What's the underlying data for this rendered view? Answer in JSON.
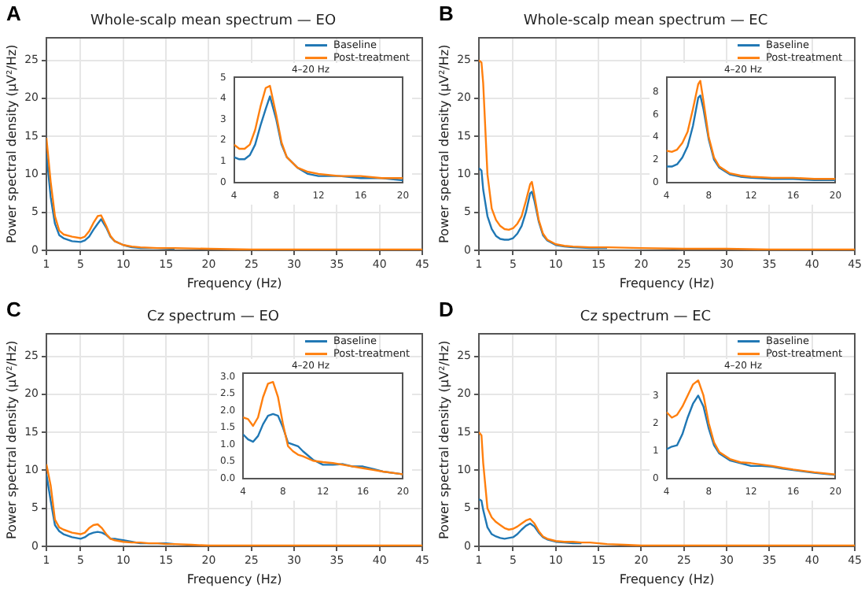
{
  "chart_data": [
    {
      "type": "line",
      "title": "Whole-scalp mean spectrum — EO",
      "xlabel": "Frequency (Hz)",
      "ylabel": "Power spectral density (μV²/Hz)",
      "annotations": [
        "A"
      ],
      "grid": true,
      "legend": "top right",
      "xlim": [
        1,
        45
      ],
      "xticks": [
        1,
        5,
        10,
        15,
        20,
        25,
        30,
        35,
        40,
        45
      ],
      "ylim": [
        0,
        28
      ],
      "yticks": [
        0,
        5,
        10,
        15,
        20,
        25
      ],
      "x": [
        1,
        1.5,
        2,
        2.5,
        3,
        4,
        5,
        5.5,
        6,
        6.5,
        7,
        7.4,
        8,
        8.5,
        9,
        10,
        11,
        12,
        14,
        16,
        20,
        25,
        30,
        35,
        40,
        45
      ],
      "series": [
        {
          "name": "Baseline",
          "color": "#1f77b4",
          "values": [
            12.8,
            7,
            3.5,
            2,
            1.6,
            1.2,
            1.1,
            1.3,
            1.8,
            2.7,
            3.5,
            4.1,
            3.0,
            1.8,
            1.2,
            0.7,
            0.4,
            0.3,
            0.3,
            0.2,
            null,
            null,
            null,
            null,
            null,
            null
          ]
        },
        {
          "name": "Post-treatment",
          "color": "#ff7f0e",
          "values": [
            14.8,
            9,
            4.5,
            2.6,
            2.1,
            1.8,
            1.6,
            1.8,
            2.5,
            3.6,
            4.5,
            4.6,
            3.2,
            1.9,
            1.2,
            0.7,
            0.5,
            0.4,
            0.3,
            0.3,
            0.2,
            0.1,
            0.1,
            0.1,
            0.1,
            0.1
          ]
        }
      ]
    },
    {
      "type": "line",
      "title": "4–20 Hz",
      "xlim": [
        4,
        20
      ],
      "xticks": [
        4,
        8,
        12,
        16,
        20
      ],
      "ylim": [
        0,
        5
      ],
      "yticks": [
        0,
        1,
        2,
        3,
        4,
        5
      ],
      "x": [
        4,
        4.5,
        5,
        5.5,
        6,
        6.5,
        7,
        7.4,
        8,
        8.5,
        9,
        10,
        11,
        12,
        14,
        16,
        18,
        20
      ],
      "series": [
        {
          "color": "#1f77b4",
          "values": [
            1.2,
            1.1,
            1.1,
            1.3,
            1.8,
            2.7,
            3.5,
            4.1,
            3.0,
            1.8,
            1.2,
            0.7,
            0.4,
            0.3,
            0.3,
            0.2,
            0.2,
            0.1
          ]
        },
        {
          "color": "#ff7f0e",
          "values": [
            1.8,
            1.6,
            1.6,
            1.8,
            2.5,
            3.6,
            4.5,
            4.6,
            3.2,
            1.9,
            1.2,
            0.7,
            0.5,
            0.4,
            0.3,
            0.3,
            0.2,
            0.2
          ]
        }
      ]
    },
    {
      "type": "line",
      "title": "Whole-scalp mean spectrum — EC",
      "xlabel": "Frequency (Hz)",
      "ylabel": "Power spectral density (μV²/Hz)",
      "annotations": [
        "B"
      ],
      "grid": true,
      "legend": "top right",
      "xlim": [
        1,
        45
      ],
      "xticks": [
        1,
        5,
        10,
        15,
        20,
        25,
        30,
        35,
        40,
        45
      ],
      "ylim": [
        0,
        28
      ],
      "yticks": [
        0,
        5,
        10,
        15,
        20,
        25
      ],
      "x": [
        1,
        1.3,
        1.5,
        2,
        2.5,
        3,
        3.5,
        4,
        4.5,
        5,
        5.5,
        6,
        6.5,
        7,
        7.2,
        7.5,
        8,
        8.5,
        9,
        10,
        11,
        12,
        14,
        16,
        20,
        25,
        30,
        35,
        40,
        45
      ],
      "series": [
        {
          "name": "Baseline",
          "color": "#1f77b4",
          "values": [
            10.8,
            10.5,
            8,
            4.5,
            2.8,
            1.9,
            1.5,
            1.4,
            1.4,
            1.6,
            2.2,
            3.2,
            5,
            7.5,
            7.7,
            6.5,
            3.8,
            2.0,
            1.3,
            0.7,
            0.5,
            0.4,
            0.3,
            0.3,
            null,
            null,
            null,
            null,
            null,
            null
          ]
        },
        {
          "name": "Post-treatment",
          "color": "#ff7f0e",
          "values": [
            25,
            24.7,
            22,
            10,
            5.5,
            4,
            3.2,
            2.8,
            2.7,
            2.9,
            3.5,
            4.5,
            6.5,
            8.7,
            9.0,
            7.2,
            4,
            2.2,
            1.4,
            0.8,
            0.6,
            0.5,
            0.4,
            0.4,
            0.3,
            0.2,
            0.2,
            0.1,
            0.1,
            0.1
          ]
        }
      ]
    },
    {
      "type": "line",
      "title": "4–20 Hz",
      "xlim": [
        4,
        20
      ],
      "xticks": [
        4,
        8,
        12,
        16,
        20
      ],
      "ylim": [
        0,
        9.3
      ],
      "yticks": [
        0,
        2,
        4,
        6,
        8
      ],
      "x": [
        4,
        4.5,
        5,
        5.5,
        6,
        6.5,
        7,
        7.2,
        7.5,
        8,
        8.5,
        9,
        10,
        11,
        12,
        14,
        16,
        18,
        20
      ],
      "series": [
        {
          "color": "#1f77b4",
          "values": [
            1.4,
            1.4,
            1.6,
            2.2,
            3.2,
            5,
            7.5,
            7.7,
            6.5,
            3.8,
            2.0,
            1.3,
            0.7,
            0.5,
            0.4,
            0.3,
            0.3,
            0.2,
            0.2
          ]
        },
        {
          "color": "#ff7f0e",
          "values": [
            2.8,
            2.7,
            2.9,
            3.5,
            4.5,
            6.5,
            8.7,
            9.0,
            7.2,
            4,
            2.2,
            1.4,
            0.8,
            0.6,
            0.5,
            0.4,
            0.4,
            0.3,
            0.3
          ]
        }
      ]
    },
    {
      "type": "line",
      "title": "Cz spectrum — EO",
      "xlabel": "Frequency (Hz)",
      "ylabel": "Power spectral density (μV²/Hz)",
      "annotations": [
        "C"
      ],
      "grid": true,
      "legend": "top right",
      "xlim": [
        1,
        45
      ],
      "xticks": [
        1,
        5,
        10,
        15,
        20,
        25,
        30,
        35,
        40,
        45
      ],
      "ylim": [
        0,
        28
      ],
      "yticks": [
        0,
        5,
        10,
        15,
        20,
        25
      ],
      "x": [
        1,
        1.5,
        2,
        2.5,
        3,
        4,
        5,
        5.5,
        6,
        6.5,
        7,
        7.5,
        8,
        8.5,
        9,
        9.5,
        10,
        11,
        12,
        13,
        14,
        15,
        16,
        18,
        20,
        25,
        30,
        35,
        40,
        45
      ],
      "series": [
        {
          "name": "Baseline",
          "color": "#1f77b4",
          "values": [
            9.5,
            6,
            2.8,
            2,
            1.6,
            1.2,
            1.0,
            1.2,
            1.6,
            1.8,
            1.9,
            1.8,
            1.5,
            1.0,
            1.0,
            0.9,
            0.8,
            0.6,
            0.4,
            0.4,
            0.4,
            0.4,
            0.3,
            null,
            null,
            null,
            null,
            null,
            null,
            null
          ]
        },
        {
          "name": "Post-treatment",
          "color": "#ff7f0e",
          "values": [
            10.8,
            8,
            3.5,
            2.5,
            2.2,
            1.8,
            1.6,
            1.8,
            2.4,
            2.8,
            2.9,
            2.4,
            1.6,
            1.0,
            0.8,
            0.7,
            0.6,
            0.5,
            0.5,
            0.4,
            0.4,
            0.3,
            0.3,
            0.2,
            0.1,
            0.1,
            0.1,
            0.1,
            0.1,
            0.1
          ]
        }
      ]
    },
    {
      "type": "line",
      "title": "4–20 Hz",
      "xlim": [
        4,
        20
      ],
      "xticks": [
        4,
        8,
        12,
        16,
        20
      ],
      "ylim": [
        0,
        3.1
      ],
      "yticks": [
        {
          "value": 0,
          "label": "0.0"
        },
        0.5,
        {
          "value": 1,
          "label": "1.0"
        },
        1.5,
        {
          "value": 2,
          "label": "2.0"
        },
        2.5,
        {
          "value": 3,
          "label": "3.0"
        }
      ],
      "x": [
        4,
        4.5,
        5,
        5.5,
        6,
        6.5,
        7,
        7.5,
        8,
        8.5,
        9,
        9.5,
        10,
        11,
        12,
        13,
        14,
        15,
        16,
        17,
        18,
        20
      ],
      "series": [
        {
          "color": "#1f77b4",
          "values": [
            1.3,
            1.15,
            1.08,
            1.25,
            1.6,
            1.85,
            1.9,
            1.85,
            1.5,
            1.05,
            1.0,
            0.95,
            0.8,
            0.55,
            0.4,
            0.4,
            0.42,
            0.35,
            0.35,
            0.28,
            0.2,
            0.12
          ]
        },
        {
          "color": "#ff7f0e",
          "values": [
            1.8,
            1.75,
            1.55,
            1.8,
            2.4,
            2.8,
            2.85,
            2.4,
            1.6,
            0.95,
            0.8,
            0.7,
            0.65,
            0.52,
            0.48,
            0.45,
            0.4,
            0.35,
            0.3,
            0.25,
            0.2,
            0.12
          ]
        }
      ]
    },
    {
      "type": "line",
      "title": "Cz spectrum — EC",
      "xlabel": "Frequency (Hz)",
      "ylabel": "Power spectral density (μV²/Hz)",
      "annotations": [
        "D"
      ],
      "grid": true,
      "legend": "top right",
      "xlim": [
        1,
        45
      ],
      "xticks": [
        1,
        5,
        10,
        15,
        20,
        25,
        30,
        35,
        40,
        45
      ],
      "ylim": [
        0,
        28
      ],
      "yticks": [
        0,
        5,
        10,
        15,
        20,
        25
      ],
      "x": [
        1,
        1.3,
        1.5,
        2,
        2.5,
        3,
        3.5,
        4,
        4.5,
        5,
        5.5,
        6,
        6.5,
        7,
        7.5,
        8,
        8.5,
        9,
        10,
        11,
        12,
        13,
        14,
        15,
        16,
        18,
        20,
        25,
        30,
        35,
        40,
        45
      ],
      "series": [
        {
          "name": "Baseline",
          "color": "#1f77b4",
          "values": [
            6.2,
            6,
            4.8,
            2.5,
            1.6,
            1.3,
            1.1,
            1.0,
            1.1,
            1.2,
            1.6,
            2.2,
            2.7,
            3.0,
            2.6,
            1.8,
            1.2,
            0.9,
            0.6,
            0.5,
            0.4,
            0.4,
            null,
            null,
            null,
            null,
            null,
            null,
            null,
            null,
            null,
            null
          ]
        },
        {
          "name": "Post-treatment",
          "color": "#ff7f0e",
          "values": [
            15,
            14.6,
            11,
            5,
            3.8,
            3.2,
            2.8,
            2.4,
            2.2,
            2.3,
            2.6,
            3.0,
            3.4,
            3.6,
            3.0,
            2.0,
            1.3,
            1.0,
            0.7,
            0.6,
            0.6,
            0.5,
            0.5,
            0.4,
            0.3,
            0.2,
            0.1,
            0.1,
            0.1,
            0.1,
            0.1,
            0.1
          ]
        }
      ]
    },
    {
      "type": "line",
      "title": "4–20 Hz",
      "xlim": [
        4,
        20
      ],
      "xticks": [
        4,
        8,
        12,
        16,
        20
      ],
      "ylim": [
        0,
        3.8
      ],
      "yticks": [
        0,
        1,
        2,
        3
      ],
      "x": [
        4,
        4.5,
        5,
        5.5,
        6,
        6.5,
        7,
        7.5,
        8,
        8.5,
        9,
        10,
        11,
        12,
        13,
        14,
        15,
        16,
        18,
        20
      ],
      "series": [
        {
          "color": "#1f77b4",
          "values": [
            1.05,
            1.15,
            1.2,
            1.6,
            2.2,
            2.7,
            3.0,
            2.6,
            1.8,
            1.2,
            0.9,
            0.65,
            0.55,
            0.45,
            0.45,
            0.42,
            0.35,
            0.3,
            0.2,
            0.12
          ]
        },
        {
          "color": "#ff7f0e",
          "values": [
            2.4,
            2.2,
            2.3,
            2.6,
            3.0,
            3.4,
            3.55,
            3.0,
            2.0,
            1.3,
            0.95,
            0.7,
            0.58,
            0.55,
            0.5,
            0.45,
            0.38,
            0.32,
            0.22,
            0.14
          ]
        }
      ]
    }
  ]
}
